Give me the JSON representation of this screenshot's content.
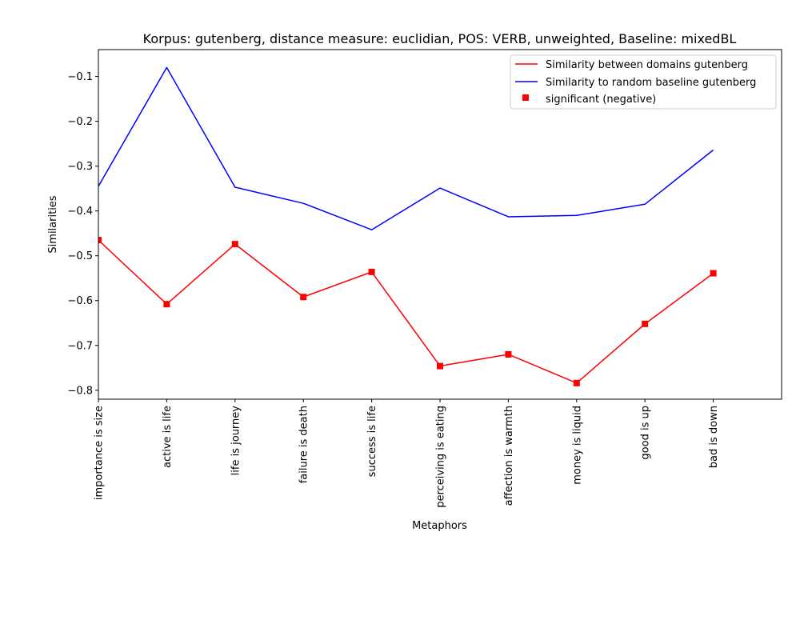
{
  "chart_data": {
    "type": "line",
    "title": "Korpus: gutenberg, distance measure: euclidian, POS: VERB, unweighted, Baseline: mixedBL",
    "xlabel": "Metaphors",
    "ylabel": "Similarities",
    "categories": [
      "importance is size",
      "active is life",
      "life is journey",
      "failure is death",
      "success is life",
      "perceiving is eating",
      "affection is warmth",
      "money is liquid",
      "good is up",
      "bad is down"
    ],
    "xlim": [
      0,
      10
    ],
    "ylim": [
      -0.82,
      -0.04
    ],
    "yticks": [
      -0.8,
      -0.7,
      -0.6,
      -0.5,
      -0.4,
      -0.3,
      -0.2,
      -0.1
    ],
    "ytick_labels": [
      "−0.8",
      "−0.7",
      "−0.6",
      "−0.5",
      "−0.4",
      "−0.3",
      "−0.2",
      "−0.1"
    ],
    "series": [
      {
        "name": "Similarity between domains gutenberg",
        "color": "#ff0000",
        "values": [
          -0.465,
          -0.608,
          -0.474,
          -0.592,
          -0.536,
          -0.746,
          -0.72,
          -0.784,
          -0.652,
          -0.539
        ]
      },
      {
        "name": "Similarity to random baseline gutenberg",
        "color": "#0000ff",
        "values": [
          -0.345,
          -0.08,
          -0.347,
          -0.383,
          -0.442,
          -0.349,
          -0.413,
          -0.41,
          -0.385,
          -0.264
        ]
      }
    ],
    "markers": {
      "name": "significant (negative)",
      "color": "#ff0000",
      "indices": [
        0,
        1,
        2,
        3,
        4,
        5,
        6,
        7,
        8,
        9
      ],
      "values": [
        -0.465,
        -0.608,
        -0.474,
        -0.592,
        -0.536,
        -0.746,
        -0.72,
        -0.784,
        -0.652,
        -0.539
      ]
    },
    "legend_position": "top-right",
    "grid": false
  }
}
